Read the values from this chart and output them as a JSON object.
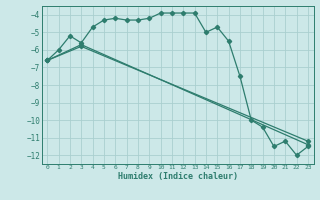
{
  "xlabel": "Humidex (Indice chaleur)",
  "ylabel": "",
  "bg_color": "#cce8e8",
  "line_color": "#2e7d6e",
  "grid_color": "#aacfcf",
  "xlim": [
    -0.5,
    23.5
  ],
  "ylim": [
    -12.5,
    -3.5
  ],
  "yticks": [
    -12,
    -11,
    -10,
    -9,
    -8,
    -7,
    -6,
    -5,
    -4
  ],
  "xticks": [
    0,
    1,
    2,
    3,
    4,
    5,
    6,
    7,
    8,
    9,
    10,
    11,
    12,
    13,
    14,
    15,
    16,
    17,
    18,
    19,
    20,
    21,
    22,
    23
  ],
  "series1_x": [
    0,
    1,
    2,
    3,
    4,
    5,
    6,
    7,
    8,
    9,
    10,
    11,
    12,
    13,
    14,
    15,
    16,
    17,
    18,
    19,
    20,
    21,
    22,
    23
  ],
  "series1_y": [
    -6.6,
    -6.0,
    -5.2,
    -5.6,
    -4.7,
    -4.3,
    -4.2,
    -4.3,
    -4.3,
    -4.2,
    -3.9,
    -3.9,
    -3.9,
    -3.9,
    -5.0,
    -4.7,
    -5.5,
    -7.5,
    -10.0,
    -10.4,
    -11.5,
    -11.2,
    -12.0,
    -11.5
  ],
  "series2_x": [
    0,
    3,
    23
  ],
  "series2_y": [
    -6.6,
    -5.7,
    -11.4
  ],
  "series3_x": [
    0,
    3,
    23
  ],
  "series3_y": [
    -6.6,
    -5.8,
    -11.2
  ]
}
